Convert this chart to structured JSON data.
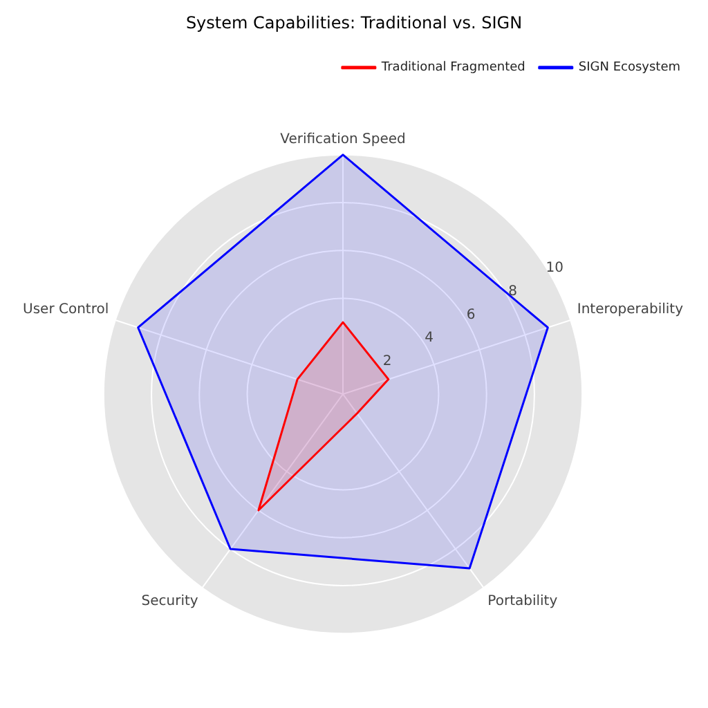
{
  "chart_data": {
    "type": "radar",
    "title": "System Capabilities: Traditional vs. SIGN",
    "categories": [
      "Verification Speed",
      "Interoperability",
      "Portability",
      "Security",
      "User Control"
    ],
    "series": [
      {
        "name": "Traditional Fragmented",
        "color": "#ff0000",
        "values": [
          3,
          2,
          1,
          6,
          2
        ]
      },
      {
        "name": "SIGN Ecosystem",
        "color": "#0000ff",
        "values": [
          10,
          9,
          9,
          8,
          9
        ]
      }
    ],
    "ylim": [
      0,
      10
    ],
    "yticks": [
      2,
      4,
      6,
      8,
      10
    ],
    "grid": true,
    "legend": "top right"
  }
}
